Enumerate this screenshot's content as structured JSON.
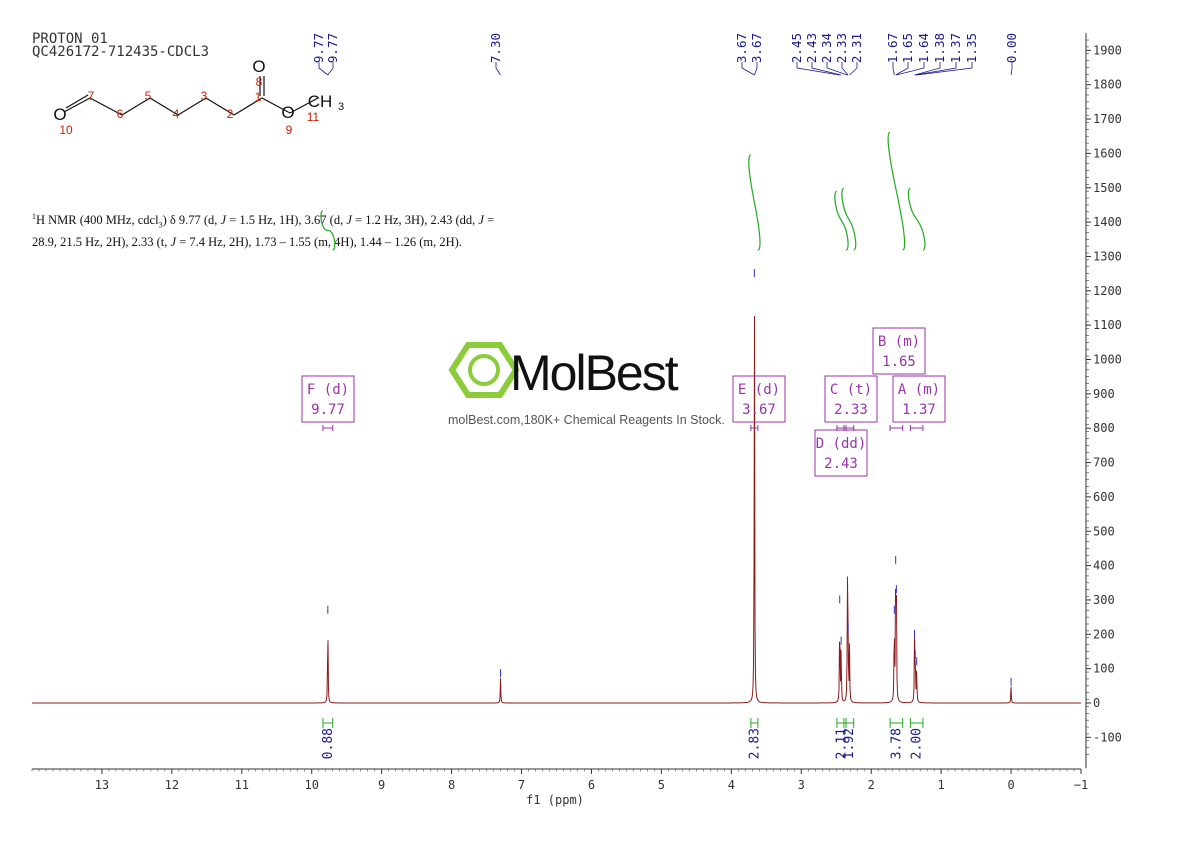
{
  "header": {
    "line1": "PROTON_01",
    "line2": "QC426172-712435-CDCL3"
  },
  "summary": {
    "sup": "1",
    "line1_segments": [
      {
        "t": "H NMR (400 MHz, cdcl",
        "i": false
      },
      {
        "t": "3",
        "sub": true
      },
      {
        "t": ") δ 9.77 (d, ",
        "i": false
      },
      {
        "t": "J",
        "i": true
      },
      {
        "t": " = 1.5 Hz, 1H), 3.67 (d, ",
        "i": false
      },
      {
        "t": "J",
        "i": true
      },
      {
        "t": " = 1.2 Hz, 3H), 2.43 (dd, ",
        "i": false
      },
      {
        "t": "J",
        "i": true
      },
      {
        "t": " =",
        "i": false
      }
    ],
    "line2_segments": [
      {
        "t": "28.9, 21.5 Hz, 2H), 2.33 (t, ",
        "i": false
      },
      {
        "t": "J",
        "i": true
      },
      {
        "t": " = 7.4 Hz, 2H), 1.73 – 1.55 (m, 4H), 1.44 – 1.26 (m, 2H).",
        "i": false
      }
    ]
  },
  "watermark": {
    "brand": "MolBest",
    "tagline": "molBest.com,180K+ Chemical Reagents In Stock."
  },
  "structure": {
    "atoms": [
      {
        "label": "O",
        "color": "#111111",
        "kind": "atom"
      },
      {
        "label": "7",
        "color": "#cc2200",
        "kind": "num"
      },
      {
        "label": "6",
        "color": "#cc2200",
        "kind": "num"
      },
      {
        "label": "5",
        "color": "#cc2200",
        "kind": "num"
      },
      {
        "label": "4",
        "color": "#cc2200",
        "kind": "num"
      },
      {
        "label": "3",
        "color": "#cc2200",
        "kind": "num"
      },
      {
        "label": "2",
        "color": "#cc2200",
        "kind": "num"
      },
      {
        "label": "1",
        "color": "#cc2200",
        "kind": "num"
      },
      {
        "label": "O",
        "color": "#111111",
        "kind": "atom"
      },
      {
        "label": "8",
        "color": "#cc2200",
        "kind": "num"
      },
      {
        "label": "O",
        "color": "#111111",
        "kind": "atom"
      },
      {
        "label": "9",
        "color": "#cc2200",
        "kind": "num"
      },
      {
        "label": "CH",
        "color": "#111111",
        "kind": "atom"
      },
      {
        "label": "3",
        "color": "#111111",
        "kind": "sub"
      },
      {
        "label": "11",
        "color": "#cc2200",
        "kind": "num"
      },
      {
        "label": "10",
        "color": "#cc2200",
        "kind": "num"
      }
    ]
  },
  "chart_data": {
    "type": "line",
    "xlabel": "f1 (ppm)",
    "x_range": [
      14,
      -1
    ],
    "x_ticks": [
      13,
      12,
      11,
      10,
      9,
      8,
      7,
      6,
      5,
      4,
      3,
      2,
      1,
      0,
      -1
    ],
    "y_range": [
      -190,
      1950
    ],
    "y_ticks": [
      1900,
      1800,
      1700,
      1600,
      1500,
      1400,
      1300,
      1200,
      1100,
      1000,
      900,
      800,
      700,
      600,
      500,
      400,
      300,
      200,
      100,
      0,
      -100
    ],
    "colors": {
      "spectrum": "#8b1a1a",
      "peak_label": "#1a1a8c",
      "multiplet": "#9933aa",
      "integral": "#22aa22",
      "integral_text": "#1a1a8c",
      "axis": "#333333"
    },
    "series": [
      {
        "peaks": [
          {
            "ppm": 9.77,
            "height": 260
          },
          {
            "ppm": 7.3,
            "height": 75
          },
          {
            "ppm": 3.67,
            "height": 1240
          },
          {
            "ppm": 2.45,
            "height": 290
          },
          {
            "ppm": 2.43,
            "height": 170
          },
          {
            "ppm": 2.34,
            "height": 345
          },
          {
            "ppm": 2.33,
            "height": 210
          },
          {
            "ppm": 2.31,
            "height": 150
          },
          {
            "ppm": 1.67,
            "height": 260
          },
          {
            "ppm": 1.65,
            "height": 405
          },
          {
            "ppm": 1.64,
            "height": 320
          },
          {
            "ppm": 1.38,
            "height": 190
          },
          {
            "ppm": 1.37,
            "height": 130
          },
          {
            "ppm": 1.35,
            "height": 110
          },
          {
            "ppm": 0.0,
            "height": 50
          }
        ]
      }
    ],
    "peak_labels": [
      {
        "group": "9.77",
        "labels": [
          "9.77",
          "9.77"
        ],
        "target_ppm": [
          9.77,
          9.77
        ]
      },
      {
        "group": "7.30",
        "labels": [
          "7.30"
        ],
        "target_ppm": [
          7.3
        ]
      },
      {
        "group": "3.67",
        "labels": [
          "3.67",
          "3.67"
        ],
        "target_ppm": [
          3.67,
          3.67
        ]
      },
      {
        "group": "2.x",
        "labels": [
          "2.45",
          "2.43",
          "2.34",
          "2.33",
          "2.31"
        ],
        "target_ppm": [
          2.45,
          2.43,
          2.34,
          2.33,
          2.31
        ]
      },
      {
        "group": "1.x",
        "labels": [
          "1.67",
          "1.65",
          "1.64",
          "1.38",
          "1.37",
          "1.35"
        ],
        "target_ppm": [
          1.67,
          1.65,
          1.64,
          1.38,
          1.37,
          1.35
        ]
      },
      {
        "group": "0",
        "labels": [
          "0.00"
        ],
        "target_ppm": [
          0.0
        ]
      }
    ],
    "multiplets": [
      {
        "id": "F",
        "mult": "d",
        "shift": "9.77",
        "range": [
          9.7,
          9.84
        ]
      },
      {
        "id": "E",
        "mult": "d",
        "shift": "3.67",
        "range": [
          3.62,
          3.72
        ]
      },
      {
        "id": "C",
        "mult": "t",
        "shift": "2.33",
        "range": [
          2.25,
          2.39
        ]
      },
      {
        "id": "D",
        "mult": "dd",
        "shift": "2.43",
        "range": [
          2.36,
          2.49
        ]
      },
      {
        "id": "B",
        "mult": "m",
        "shift": "1.65",
        "range": [
          1.55,
          1.73
        ]
      },
      {
        "id": "A",
        "mult": "m",
        "shift": "1.37",
        "range": [
          1.26,
          1.44
        ]
      }
    ],
    "integrals": [
      {
        "value": "0.88",
        "range": [
          9.7,
          9.84
        ],
        "rise": 140
      },
      {
        "value": "2.83",
        "range": [
          3.62,
          3.72
        ],
        "rise": 340
      },
      {
        "value": "2.11",
        "range": [
          2.36,
          2.49
        ],
        "rise": 210
      },
      {
        "value": "1.92",
        "range": [
          2.25,
          2.39
        ],
        "rise": 220
      },
      {
        "value": "3.78",
        "range": [
          1.55,
          1.73
        ],
        "rise": 420
      },
      {
        "value": "2.00",
        "range": [
          1.26,
          1.44
        ],
        "rise": 220
      }
    ]
  }
}
